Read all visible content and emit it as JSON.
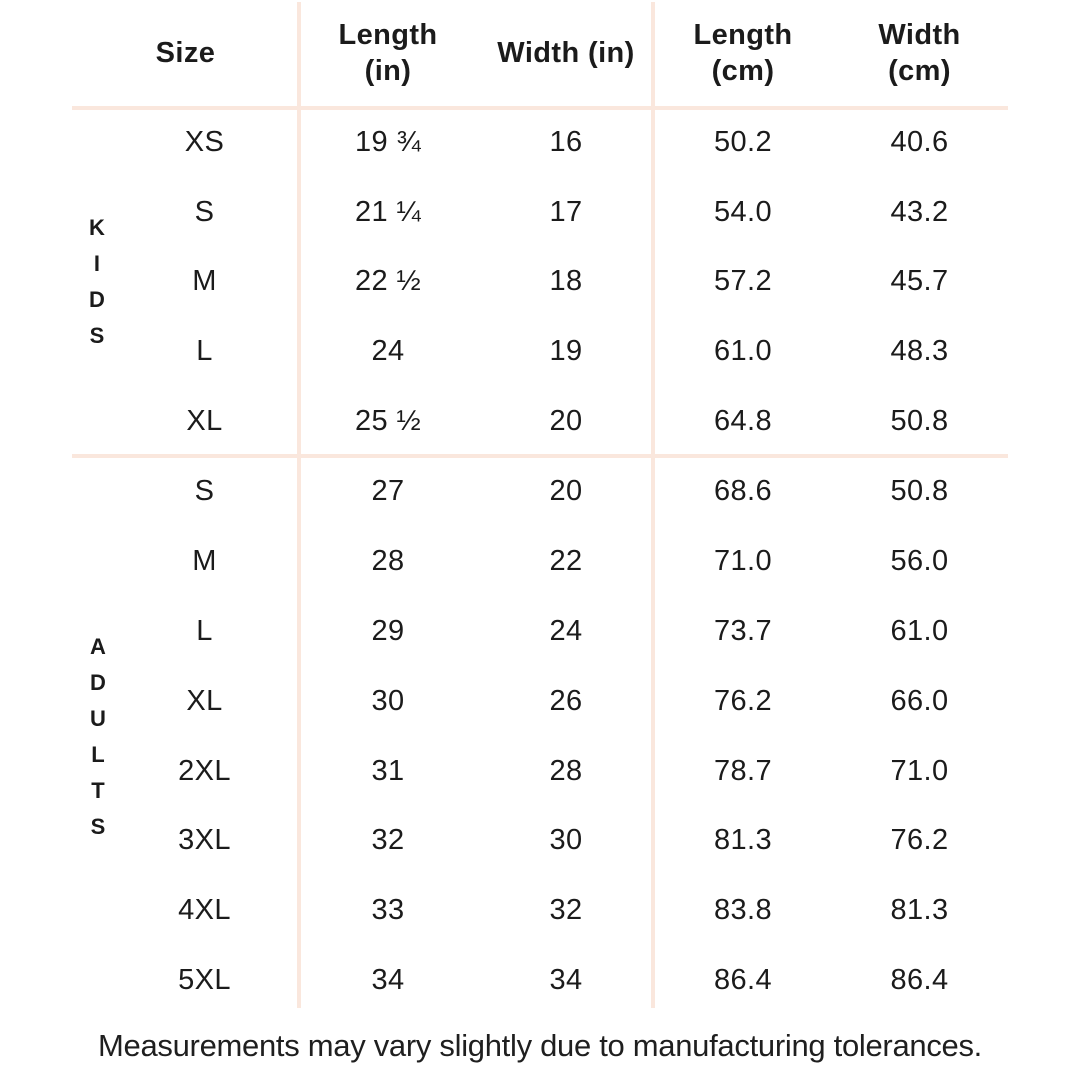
{
  "colors": {
    "background": "#ffffff",
    "divider": "#fae7dd",
    "text": "#1b1b1b",
    "footnote_text": "#1f1f1f"
  },
  "chart_data": {
    "type": "table",
    "columns": {
      "size": "Size",
      "length_in": "Length\n(in)",
      "width_in": "Width (in)",
      "length_cm": "Length\n(cm)",
      "width_cm": "Width\n(cm)"
    },
    "sections": [
      {
        "label": "KIDS",
        "rows": [
          {
            "size": "XS",
            "length_in": "19 ¾",
            "width_in": "16",
            "length_cm": "50.2",
            "width_cm": "40.6"
          },
          {
            "size": "S",
            "length_in": "21 ¼",
            "width_in": "17",
            "length_cm": "54.0",
            "width_cm": "43.2"
          },
          {
            "size": "M",
            "length_in": "22 ½",
            "width_in": "18",
            "length_cm": "57.2",
            "width_cm": "45.7"
          },
          {
            "size": "L",
            "length_in": "24",
            "width_in": "19",
            "length_cm": "61.0",
            "width_cm": "48.3"
          },
          {
            "size": "XL",
            "length_in": "25 ½",
            "width_in": "20",
            "length_cm": "64.8",
            "width_cm": "50.8"
          }
        ]
      },
      {
        "label": "ADULTS",
        "rows": [
          {
            "size": "S",
            "length_in": "27",
            "width_in": "20",
            "length_cm": "68.6",
            "width_cm": "50.8"
          },
          {
            "size": "M",
            "length_in": "28",
            "width_in": "22",
            "length_cm": "71.0",
            "width_cm": "56.0"
          },
          {
            "size": "L",
            "length_in": "29",
            "width_in": "24",
            "length_cm": "73.7",
            "width_cm": "61.0"
          },
          {
            "size": "XL",
            "length_in": "30",
            "width_in": "26",
            "length_cm": "76.2",
            "width_cm": "66.0"
          },
          {
            "size": "2XL",
            "length_in": "31",
            "width_in": "28",
            "length_cm": "78.7",
            "width_cm": "71.0"
          },
          {
            "size": "3XL",
            "length_in": "32",
            "width_in": "30",
            "length_cm": "81.3",
            "width_cm": "76.2"
          },
          {
            "size": "4XL",
            "length_in": "33",
            "width_in": "32",
            "length_cm": "83.8",
            "width_cm": "81.3"
          },
          {
            "size": "5XL",
            "length_in": "34",
            "width_in": "34",
            "length_cm": "86.4",
            "width_cm": "86.4"
          }
        ]
      }
    ],
    "footnote": "Measurements may vary slightly due to manufacturing tolerances."
  }
}
